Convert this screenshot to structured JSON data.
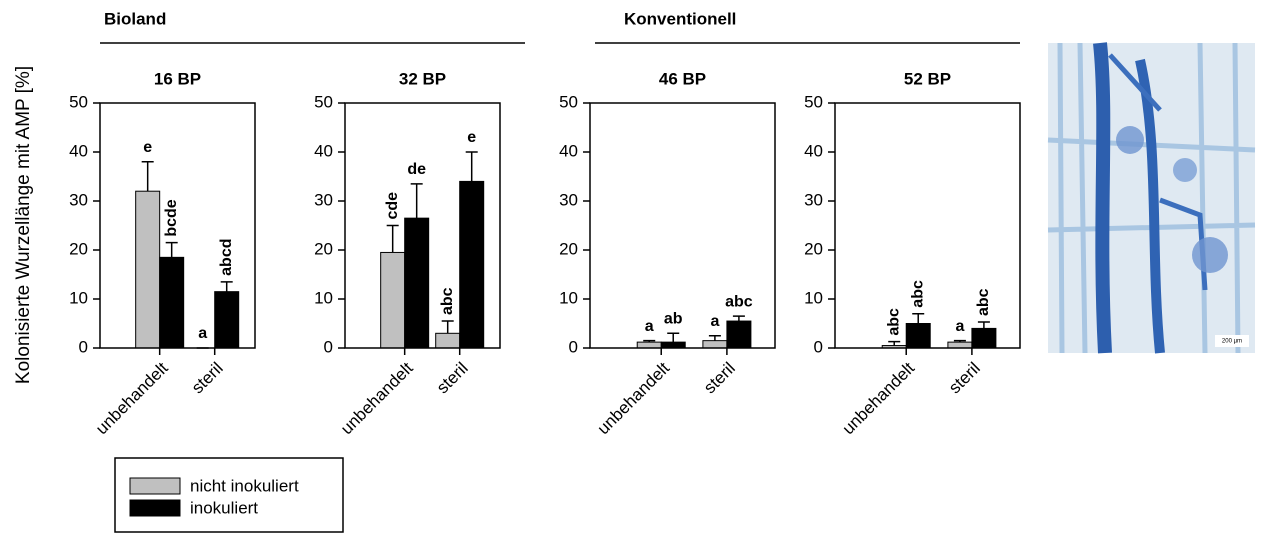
{
  "y_label": "Kolonisierte Wurzellänge mit AMP [%]",
  "groups": [
    {
      "label": "Bioland"
    },
    {
      "label": "Konventionell"
    }
  ],
  "image_scale_label": "200 µm",
  "chart_data": [
    {
      "type": "bar",
      "title": "16 BP",
      "categories": [
        "unbehandelt",
        "steril"
      ],
      "ylim": [
        0,
        50
      ],
      "yticks": [
        0,
        10,
        20,
        30,
        40,
        50
      ],
      "series": [
        {
          "name": "nicht inokuliert",
          "color": "#c0c0c0",
          "values": [
            32,
            0
          ],
          "errors": [
            6,
            0
          ],
          "letters": [
            "e",
            "a"
          ]
        },
        {
          "name": "inokuliert",
          "color": "#000000",
          "values": [
            18.5,
            11.5
          ],
          "errors": [
            3,
            2
          ],
          "letters": [
            "bcde",
            "abcd"
          ]
        }
      ]
    },
    {
      "type": "bar",
      "title": "32 BP",
      "categories": [
        "unbehandelt",
        "steril"
      ],
      "ylim": [
        0,
        50
      ],
      "yticks": [
        0,
        10,
        20,
        30,
        40,
        50
      ],
      "series": [
        {
          "name": "nicht inokuliert",
          "color": "#c0c0c0",
          "values": [
            19.5,
            3
          ],
          "errors": [
            5.5,
            2.5
          ],
          "letters": [
            "cde",
            "abc"
          ]
        },
        {
          "name": "inokuliert",
          "color": "#000000",
          "values": [
            26.5,
            34
          ],
          "errors": [
            7,
            6
          ],
          "letters": [
            "de",
            "e"
          ]
        }
      ]
    },
    {
      "type": "bar",
      "title": "46 BP",
      "categories": [
        "unbehandelt",
        "steril"
      ],
      "ylim": [
        0,
        50
      ],
      "yticks": [
        0,
        10,
        20,
        30,
        40,
        50
      ],
      "series": [
        {
          "name": "nicht inokuliert",
          "color": "#c0c0c0",
          "values": [
            1.2,
            1.5
          ],
          "errors": [
            0.3,
            1
          ],
          "letters": [
            "a",
            "a"
          ]
        },
        {
          "name": "inokuliert",
          "color": "#000000",
          "values": [
            1.2,
            5.5
          ],
          "errors": [
            1.8,
            1
          ],
          "letters": [
            "ab",
            "abc"
          ]
        }
      ]
    },
    {
      "type": "bar",
      "title": "52 BP",
      "categories": [
        "unbehandelt",
        "steril"
      ],
      "ylim": [
        0,
        50
      ],
      "yticks": [
        0,
        10,
        20,
        30,
        40,
        50
      ],
      "series": [
        {
          "name": "nicht inokuliert",
          "color": "#c0c0c0",
          "values": [
            0.5,
            1.2
          ],
          "errors": [
            0.8,
            0.3
          ],
          "letters": [
            "abc",
            "a"
          ]
        },
        {
          "name": "inokuliert",
          "color": "#000000",
          "values": [
            5,
            4
          ],
          "errors": [
            2,
            1.3
          ],
          "letters": [
            "abc",
            "abc"
          ]
        }
      ]
    }
  ]
}
